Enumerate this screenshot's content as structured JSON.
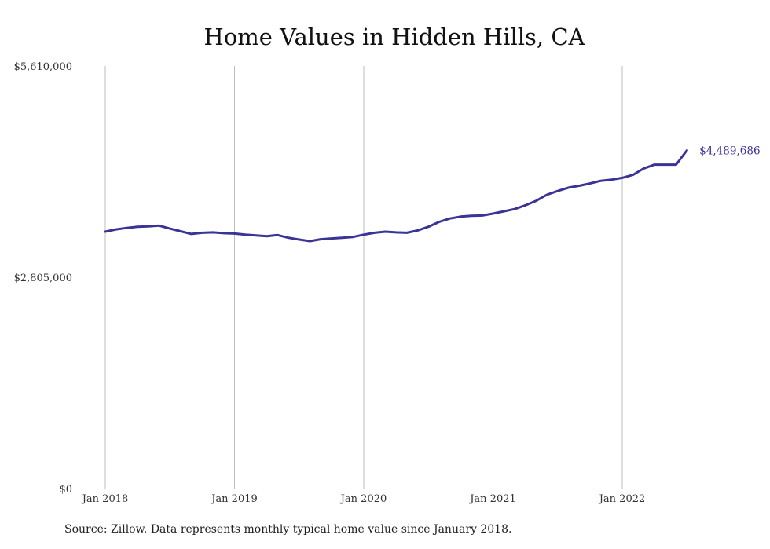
{
  "chart_data": {
    "type": "line",
    "title": "Home Values in Hidden Hills, CA",
    "xlabel": "",
    "ylabel": "",
    "ylim": [
      0,
      5610000
    ],
    "y_ticks": [
      0,
      2805000,
      5610000
    ],
    "y_tick_labels": [
      "$0",
      "$2,805,000",
      "$5,610,000"
    ],
    "x_ticks": [
      "2018-01",
      "2019-01",
      "2020-01",
      "2021-01",
      "2022-01"
    ],
    "x_tick_labels": [
      "Jan 2018",
      "Jan 2019",
      "Jan 2020",
      "Jan 2021",
      "Jan 2022"
    ],
    "grid": "vertical",
    "line_color": "#3b3496",
    "end_label": "$4,489,686",
    "series": [
      {
        "x": [
          "2018-01",
          "2018-02",
          "2018-03",
          "2018-04",
          "2018-05",
          "2018-06",
          "2018-07",
          "2018-08",
          "2018-09",
          "2018-10",
          "2018-11",
          "2018-12",
          "2019-01",
          "2019-02",
          "2019-03",
          "2019-04",
          "2019-05",
          "2019-06",
          "2019-07",
          "2019-08",
          "2019-09",
          "2019-10",
          "2019-11",
          "2019-12",
          "2020-01",
          "2020-02",
          "2020-03",
          "2020-04",
          "2020-05",
          "2020-06",
          "2020-07",
          "2020-08",
          "2020-09",
          "2020-10",
          "2020-11",
          "2020-12",
          "2021-01",
          "2021-02",
          "2021-03",
          "2021-04",
          "2021-05",
          "2021-06",
          "2021-07",
          "2021-08",
          "2021-09",
          "2021-10",
          "2021-11",
          "2021-12",
          "2022-01",
          "2022-02",
          "2022-03",
          "2022-04",
          "2022-05",
          "2022-06",
          "2022-07"
        ],
        "values": [
          3410000,
          3440000,
          3460000,
          3475000,
          3480000,
          3490000,
          3450000,
          3415000,
          3380000,
          3395000,
          3400000,
          3390000,
          3385000,
          3370000,
          3360000,
          3350000,
          3365000,
          3330000,
          3305000,
          3285000,
          3310000,
          3320000,
          3330000,
          3340000,
          3370000,
          3395000,
          3410000,
          3400000,
          3395000,
          3425000,
          3475000,
          3540000,
          3585000,
          3610000,
          3620000,
          3625000,
          3650000,
          3680000,
          3710000,
          3760000,
          3820000,
          3900000,
          3950000,
          3995000,
          4020000,
          4050000,
          4085000,
          4100000,
          4125000,
          4165000,
          4250000,
          4300000,
          4300000,
          4300000,
          4489686
        ]
      }
    ]
  },
  "source": "Source: Zillow. Data represents monthly typical home value since January 2018."
}
